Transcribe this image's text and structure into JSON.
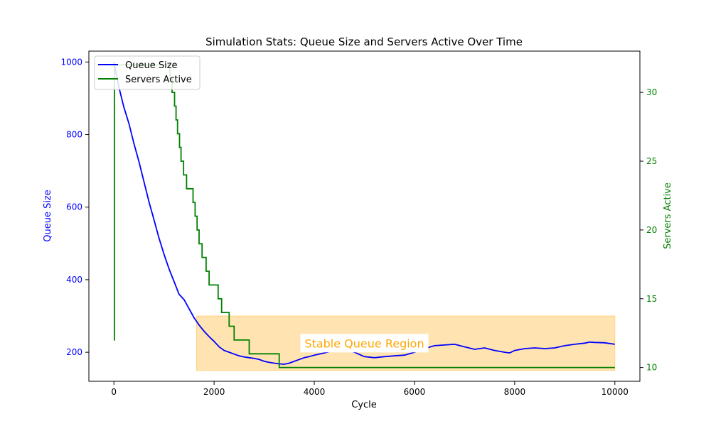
{
  "chart_data": {
    "type": "line",
    "title": "Simulation Stats: Queue Size and Servers Active Over Time",
    "xlabel": "Cycle",
    "ylabel": "Queue Size",
    "y2label": "Servers Active",
    "xlim": [
      -500,
      10500
    ],
    "ylim": [
      120,
      1030
    ],
    "y2lim": [
      9,
      33
    ],
    "xticks": [
      0,
      2000,
      4000,
      6000,
      8000,
      10000
    ],
    "yticks": [
      200,
      400,
      600,
      800,
      1000
    ],
    "y2ticks": [
      10,
      15,
      20,
      25,
      30
    ],
    "legend_position": "top-left",
    "grid": false,
    "colors": {
      "queue": "#0000ff",
      "servers": "#008000",
      "region_fill": "#ffa500",
      "region_text": "#ffa500"
    },
    "series": [
      {
        "name": "Queue Size",
        "axis": "left",
        "x": [
          0,
          100,
          200,
          300,
          400,
          500,
          600,
          700,
          800,
          900,
          1000,
          1100,
          1200,
          1300,
          1400,
          1500,
          1600,
          1700,
          1800,
          1900,
          2000,
          2100,
          2200,
          2300,
          2400,
          2500,
          2600,
          2700,
          2800,
          2900,
          3000,
          3100,
          3200,
          3300,
          3400,
          3500,
          3600,
          3700,
          3800,
          3900,
          4000,
          4200,
          4400,
          4600,
          4800,
          5000,
          5200,
          5400,
          5600,
          5800,
          6000,
          6200,
          6400,
          6600,
          6800,
          7000,
          7200,
          7400,
          7600,
          7800,
          7900,
          8000,
          8200,
          8400,
          8600,
          8800,
          9000,
          9200,
          9400,
          9500,
          9600,
          9800,
          10000
        ],
        "values": [
          1000,
          930,
          875,
          830,
          775,
          725,
          670,
          615,
          565,
          515,
          470,
          430,
          395,
          360,
          345,
          320,
          295,
          275,
          258,
          243,
          230,
          215,
          205,
          200,
          195,
          190,
          187,
          185,
          183,
          180,
          175,
          172,
          170,
          168,
          167,
          170,
          175,
          180,
          185,
          188,
          192,
          198,
          205,
          210,
          200,
          188,
          185,
          188,
          190,
          192,
          200,
          210,
          218,
          220,
          222,
          215,
          208,
          212,
          205,
          200,
          198,
          205,
          210,
          212,
          210,
          212,
          218,
          222,
          225,
          228,
          227,
          226,
          222
        ]
      },
      {
        "name": "Servers Active",
        "axis": "right",
        "step": true,
        "x": [
          0,
          10,
          1100,
          1120,
          1160,
          1210,
          1240,
          1270,
          1310,
          1340,
          1390,
          1450,
          1580,
          1620,
          1660,
          1700,
          1760,
          1840,
          1900,
          2080,
          2150,
          2300,
          2400,
          2700,
          2750,
          3100,
          3300,
          10000
        ],
        "values": [
          12,
          32,
          32,
          31,
          30,
          29,
          28,
          27,
          26,
          25,
          24,
          23,
          22,
          21,
          20,
          19,
          18,
          17,
          16,
          15,
          14,
          13,
          12,
          11,
          11,
          11,
          10,
          10
        ]
      }
    ],
    "annotations": [
      {
        "type": "region",
        "x0": 1650,
        "x1": 10000,
        "y0": 150,
        "y1": 300
      },
      {
        "type": "text",
        "text": "Stable Queue Region",
        "x": 5000,
        "y": 225
      }
    ]
  }
}
